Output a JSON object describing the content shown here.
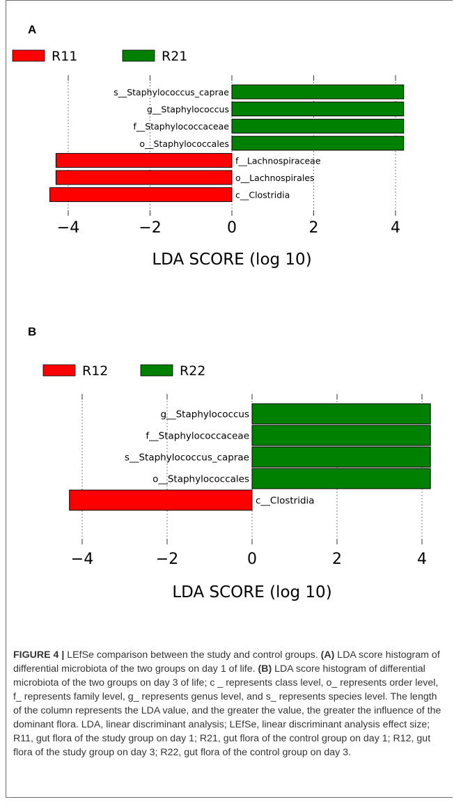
{
  "figure_caption": {
    "lead": "FIGURE 4 |",
    "part1": " LEfSe comparison between the study and control groups. ",
    "tag_a": "(A)",
    "part2": " LDA score histogram of differential microbiota of the two groups on day 1 of life. ",
    "tag_b": "(B)",
    "part3": " LDA score histogram of differential microbiota of the two groups on day 3 of life; c _ represents class level, o_ represents order level, f_ represents family level, g_ represents genus level, and s_ represents species level. The length of the column represents the LDA value, and the greater the value, the greater the influence of the dominant flora. LDA, linear discriminant analysis; LEfSe, linear discriminant analysis effect size; R11, gut flora of the study group on day 1; R21, gut flora of the control group on day 1; R12, gut flora of the study group on day 3; R22, gut flora of the control group on day 3."
  },
  "colors": {
    "group1": "#ff0000",
    "group2": "#008000",
    "grid": "#555555"
  },
  "chart_data": [
    {
      "panel": "A",
      "type": "bar",
      "orientation": "horizontal",
      "xlabel": "LDA SCORE (log 10)",
      "xticks": [
        "−4",
        "−2",
        "0",
        "2",
        "4"
      ],
      "tick_values": [
        -4,
        -2,
        0,
        2,
        4
      ],
      "xlim": [
        -4.5,
        4.5
      ],
      "legend": [
        "R11",
        "R21"
      ],
      "legend_placement": "top-left",
      "grid": true,
      "categories": [
        "s__Staphylococcus_caprae",
        "g__Staphylococcus",
        "f__Staphylococcaceae",
        "o__Staphylococcales",
        "f__Lachnospiraceae",
        "o__Lachnospirales",
        "c__Clostridia"
      ],
      "values": [
        4.2,
        4.2,
        4.2,
        4.2,
        -4.3,
        -4.3,
        -4.45
      ],
      "groups": [
        "R21",
        "R21",
        "R21",
        "R21",
        "R11",
        "R11",
        "R11"
      ]
    },
    {
      "panel": "B",
      "type": "bar",
      "orientation": "horizontal",
      "xlabel": "LDA SCORE (log 10)",
      "xticks": [
        "−4",
        "−2",
        "0",
        "2",
        "4"
      ],
      "tick_values": [
        -4,
        -2,
        0,
        2,
        4
      ],
      "xlim": [
        -4.5,
        4.5
      ],
      "legend": [
        "R12",
        "R22"
      ],
      "legend_placement": "top-left",
      "grid": true,
      "categories": [
        "g__Staphylococcus",
        "f__Staphylococcaceae",
        "s__Staphylococcus_caprae",
        "o__Staphylococcales",
        "c__Clostridia"
      ],
      "values": [
        4.2,
        4.2,
        4.2,
        4.2,
        -4.3
      ],
      "groups": [
        "R22",
        "R22",
        "R22",
        "R22",
        "R12"
      ]
    }
  ]
}
